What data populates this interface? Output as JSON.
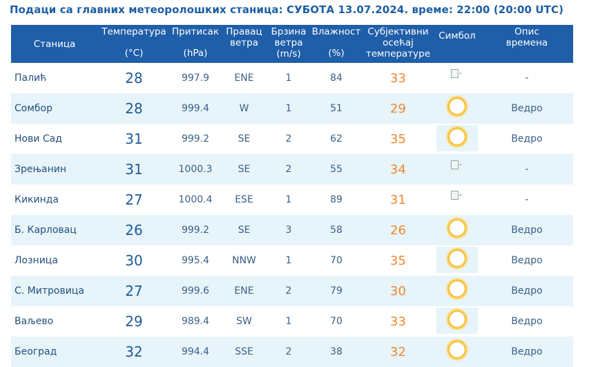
{
  "title": "Подаци са главних метеоролошких станица:  СУБОТА 13.07.2024.  време: 22:00 (20:00 UTC)",
  "headers": {
    "station": "Станица",
    "temp_l1": "Температура",
    "temp_l2": "(°C)",
    "press_l1": "Притисак",
    "press_l2": "(hPa)",
    "dir_l1": "Правац",
    "dir_l2": "ветра",
    "speed_l1": "Брзина",
    "speed_l2": "ветра",
    "speed_l3": "(m/s)",
    "hum_l1": "Влажност",
    "hum_l2": "(%)",
    "feel_l1": "Субјективни",
    "feel_l2": "осећај",
    "feel_l3": "температуре",
    "symbol": "Симбол",
    "desc_l1": "Опис",
    "desc_l2": "времена"
  },
  "broken_image_alt": "-",
  "rows": [
    {
      "station": "Палић",
      "temp": "28",
      "pressure": "997.9",
      "dir": "ENE",
      "speed": "1",
      "hum": "84",
      "feel": "33",
      "symbol": "broken-image-icon",
      "desc": "-"
    },
    {
      "station": "Сомбор",
      "temp": "28",
      "pressure": "999.4",
      "dir": "W",
      "speed": "1",
      "hum": "51",
      "feel": "29",
      "symbol": "sun-icon",
      "desc": "Ведро"
    },
    {
      "station": "Нови Сад",
      "temp": "31",
      "pressure": "999.2",
      "dir": "SE",
      "speed": "2",
      "hum": "62",
      "feel": "35",
      "symbol": "sun-icon",
      "desc": "Ведро"
    },
    {
      "station": "Зрењанин",
      "temp": "31",
      "pressure": "1000.3",
      "dir": "SE",
      "speed": "2",
      "hum": "55",
      "feel": "34",
      "symbol": "broken-image-icon",
      "desc": "-"
    },
    {
      "station": "Кикинда",
      "temp": "27",
      "pressure": "1000.4",
      "dir": "ESE",
      "speed": "1",
      "hum": "89",
      "feel": "31",
      "symbol": "broken-image-icon",
      "desc": "-"
    },
    {
      "station": "Б. Карловац",
      "temp": "26",
      "pressure": "999.2",
      "dir": "SE",
      "speed": "3",
      "hum": "58",
      "feel": "26",
      "symbol": "sun-icon",
      "desc": "Ведро"
    },
    {
      "station": "Лозница",
      "temp": "30",
      "pressure": "995.4",
      "dir": "NNW",
      "speed": "1",
      "hum": "70",
      "feel": "35",
      "symbol": "sun-icon",
      "desc": "Ведро"
    },
    {
      "station": "С. Митровица",
      "temp": "27",
      "pressure": "999.6",
      "dir": "ENE",
      "speed": "2",
      "hum": "79",
      "feel": "30",
      "symbol": "sun-icon",
      "desc": "Ведро"
    },
    {
      "station": "Ваљево",
      "temp": "29",
      "pressure": "989.4",
      "dir": "SW",
      "speed": "1",
      "hum": "70",
      "feel": "33",
      "symbol": "sun-icon",
      "desc": "Ведро"
    },
    {
      "station": "Београд",
      "temp": "32",
      "pressure": "994.4",
      "dir": "SSE",
      "speed": "2",
      "hum": "38",
      "feel": "32",
      "symbol": "sun-icon",
      "desc": "Ведро"
    }
  ]
}
